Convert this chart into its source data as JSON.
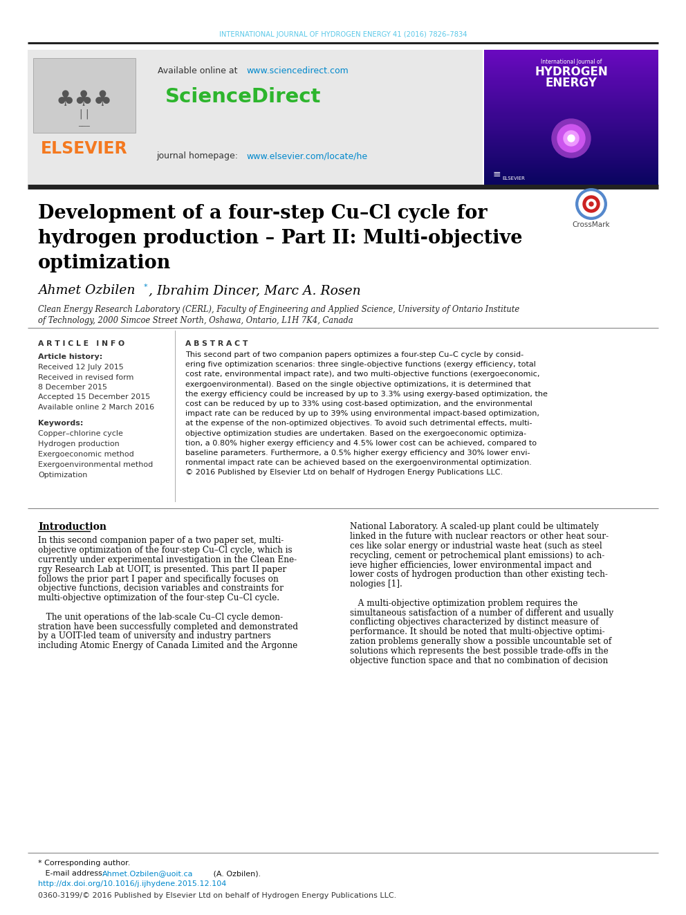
{
  "journal_header": "INTERNATIONAL JOURNAL OF HYDROGEN ENERGY 41 (2016) 7826–7834",
  "available_online": "Available online at",
  "sciencedirect_url": "www.sciencedirect.com",
  "sciencedirect_text": "ScienceDirect",
  "journal_homepage_label": "journal homepage:",
  "journal_homepage_url": "www.elsevier.com/locate/he",
  "elsevier_text": "ELSEVIER",
  "title_line1": "Development of a four-step Cu–Cl cycle for",
  "title_line2": "hydrogen production – Part II: Multi-objective",
  "title_line3": "optimization",
  "article_info_title": "A R T I C L E   I N F O",
  "article_history_title": "Article history:",
  "received1": "Received 12 July 2015",
  "received2a": "Received in revised form",
  "received2b": "8 December 2015",
  "accepted": "Accepted 15 December 2015",
  "available_online2": "Available online 2 March 2016",
  "keywords_title": "Keywords:",
  "keywords": [
    "Copper–chlorine cycle",
    "Hydrogen production",
    "Exergoeconomic method",
    "Exergoenvironmental method",
    "Optimization"
  ],
  "abstract_title": "A B S T R A C T",
  "abstract_lines": [
    "This second part of two companion papers optimizes a four-step Cu–C cycle by consid-",
    "ering five optimization scenarios: three single-objective functions (exergy efficiency, total",
    "cost rate, environmental impact rate), and two multi-objective functions (exergoeconomic,",
    "exergoenvironmental). Based on the single objective optimizations, it is determined that",
    "the exergy efficiency could be increased by up to 3.3% using exergy-based optimization, the",
    "cost can be reduced by up to 33% using cost-based optimization, and the environmental",
    "impact rate can be reduced by up to 39% using environmental impact-based optimization,",
    "at the expense of the non-optimized objectives. To avoid such detrimental effects, multi-",
    "objective optimization studies are undertaken. Based on the exergoeconomic optimiza-",
    "tion, a 0.80% higher exergy efficiency and 4.5% lower cost can be achieved, compared to",
    "baseline parameters. Furthermore, a 0.5% higher exergy efficiency and 30% lower envi-",
    "ronmental impact rate can be achieved based on the exergoenvironmental optimization.",
    "© 2016 Published by Elsevier Ltd on behalf of Hydrogen Energy Publications LLC."
  ],
  "intro_title": "Introduction",
  "intro_left_lines": [
    "In this second companion paper of a two paper set, multi-",
    "objective optimization of the four-step Cu–Cl cycle, which is",
    "currently under experimental investigation in the Clean Ene-",
    "rgy Research Lab at UOIT, is presented. This part II paper",
    "follows the prior part I paper and specifically focuses on",
    "objective functions, decision variables and constraints for",
    "multi-objective optimization of the four-step Cu–Cl cycle.",
    "",
    "   The unit operations of the lab-scale Cu–Cl cycle demon-",
    "stration have been successfully completed and demonstrated",
    "by a UOIT-led team of university and industry partners",
    "including Atomic Energy of Canada Limited and the Argonne"
  ],
  "intro_right_lines": [
    "National Laboratory. A scaled-up plant could be ultimately",
    "linked in the future with nuclear reactors or other heat sour-",
    "ces like solar energy or industrial waste heat (such as steel",
    "recycling, cement or petrochemical plant emissions) to ach-",
    "ieve higher efficiencies, lower environmental impact and",
    "lower costs of hydrogen production than other existing tech-",
    "nologies [1].",
    "",
    "   A multi-objective optimization problem requires the",
    "simultaneous satisfaction of a number of different and usually",
    "conflicting objectives characterized by distinct measure of",
    "performance. It should be noted that multi-objective optimi-",
    "zation problems generally show a possible uncountable set of",
    "solutions which represents the best possible trade-offs in the",
    "objective function space and that no combination of decision"
  ],
  "footnote_star": "* Corresponding author.",
  "footnote_email_label": "E-mail address:",
  "footnote_email": "Ahmet.Ozbilen@uoit.ca",
  "footnote_email_suffix": " (A. Ozbilen).",
  "footnote_doi": "http://dx.doi.org/10.1016/j.ijhydene.2015.12.104",
  "footnote_copyright": "0360-3199/© 2016 Published by Elsevier Ltd on behalf of Hydrogen Energy Publications LLC.",
  "bg_color": "#ffffff",
  "journal_color": "#5bc8e8",
  "elsevier_orange": "#f47920",
  "url_color": "#0088cc",
  "light_gray_bg": "#e8e8e8",
  "cover_bg": "#0a0560"
}
